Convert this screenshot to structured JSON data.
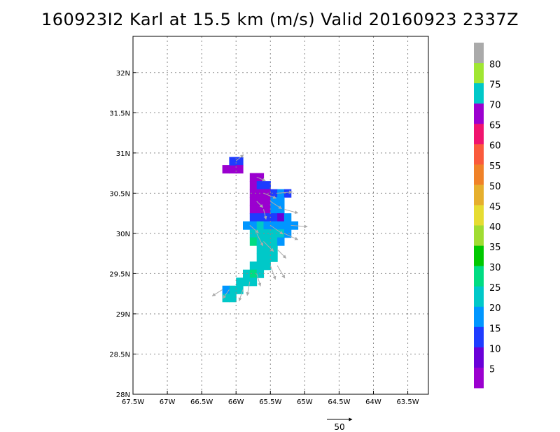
{
  "title": "160923I2 Karl at 15.5 km (m/s) Valid 20160923 2337Z",
  "map": {
    "lon_range": [
      -67.5,
      -63.2
    ],
    "lat_range": [
      28.0,
      32.45
    ],
    "lon_ticks": [
      {
        "v": -67.5,
        "label": "67.5W"
      },
      {
        "v": -67.0,
        "label": "67W"
      },
      {
        "v": -66.5,
        "label": "66.5W"
      },
      {
        "v": -66.0,
        "label": "66W"
      },
      {
        "v": -65.5,
        "label": "65.5W"
      },
      {
        "v": -65.0,
        "label": "65W"
      },
      {
        "v": -64.5,
        "label": "64.5W"
      },
      {
        "v": -64.0,
        "label": "64W"
      },
      {
        "v": -63.5,
        "label": "63.5W"
      }
    ],
    "lat_ticks": [
      {
        "v": 28.0,
        "label": "28N"
      },
      {
        "v": 28.5,
        "label": "28.5N"
      },
      {
        "v": 29.0,
        "label": "29N"
      },
      {
        "v": 29.5,
        "label": "29.5N"
      },
      {
        "v": 30.0,
        "label": "30N"
      },
      {
        "v": 30.5,
        "label": "30.5N"
      },
      {
        "v": 31.0,
        "label": "31N"
      },
      {
        "v": 31.5,
        "label": "31.5N"
      },
      {
        "v": 32.0,
        "label": "32N"
      }
    ],
    "grid": true,
    "cell_deg": [
      0.1,
      0.1
    ]
  },
  "colorbar": {
    "labels": [
      "5",
      "10",
      "15",
      "20",
      "25",
      "30",
      "35",
      "40",
      "45",
      "50",
      "55",
      "60",
      "65",
      "70",
      "75",
      "80"
    ],
    "colors": [
      "#9b00cf",
      "#6a00d8",
      "#1e3cff",
      "#0096ff",
      "#00c8c8",
      "#00dc82",
      "#00c800",
      "#a0dc32",
      "#e6dc32",
      "#e6af2d",
      "#f08228",
      "#fa5a3c",
      "#f0146e",
      "#9b00cf",
      "#00c8c8",
      "#a0e632",
      "#aaaaaa"
    ]
  },
  "wind_cells": [
    {
      "lon": -66.15,
      "lat": 30.8,
      "c": "#9b00cf"
    },
    {
      "lon": -66.05,
      "lat": 30.8,
      "c": "#9b00cf"
    },
    {
      "lon": -66.05,
      "lat": 30.9,
      "c": "#1e3cff"
    },
    {
      "lon": -65.95,
      "lat": 30.9,
      "c": "#1e3cff"
    },
    {
      "lon": -65.95,
      "lat": 30.8,
      "c": "#9b00cf"
    },
    {
      "lon": -65.75,
      "lat": 30.7,
      "c": "#9b00cf"
    },
    {
      "lon": -65.65,
      "lat": 30.7,
      "c": "#9b00cf"
    },
    {
      "lon": -65.75,
      "lat": 30.6,
      "c": "#9b00cf"
    },
    {
      "lon": -65.65,
      "lat": 30.6,
      "c": "#1e3cff"
    },
    {
      "lon": -65.55,
      "lat": 30.6,
      "c": "#1e3cff"
    },
    {
      "lon": -65.75,
      "lat": 30.5,
      "c": "#9b00cf"
    },
    {
      "lon": -65.65,
      "lat": 30.5,
      "c": "#9b00cf"
    },
    {
      "lon": -65.55,
      "lat": 30.5,
      "c": "#9b00cf"
    },
    {
      "lon": -65.45,
      "lat": 30.5,
      "c": "#1e3cff"
    },
    {
      "lon": -65.35,
      "lat": 30.5,
      "c": "#0096ff"
    },
    {
      "lon": -65.25,
      "lat": 30.5,
      "c": "#1e3cff"
    },
    {
      "lon": -65.75,
      "lat": 30.4,
      "c": "#9b00cf"
    },
    {
      "lon": -65.65,
      "lat": 30.4,
      "c": "#9b00cf"
    },
    {
      "lon": -65.55,
      "lat": 30.4,
      "c": "#9b00cf"
    },
    {
      "lon": -65.45,
      "lat": 30.4,
      "c": "#0096ff"
    },
    {
      "lon": -65.35,
      "lat": 30.4,
      "c": "#0096ff"
    },
    {
      "lon": -65.75,
      "lat": 30.3,
      "c": "#9b00cf"
    },
    {
      "lon": -65.65,
      "lat": 30.3,
      "c": "#9b00cf"
    },
    {
      "lon": -65.55,
      "lat": 30.3,
      "c": "#9b00cf"
    },
    {
      "lon": -65.45,
      "lat": 30.3,
      "c": "#0096ff"
    },
    {
      "lon": -65.35,
      "lat": 30.3,
      "c": "#0096ff"
    },
    {
      "lon": -65.75,
      "lat": 30.2,
      "c": "#1e3cff"
    },
    {
      "lon": -65.65,
      "lat": 30.2,
      "c": "#1e3cff"
    },
    {
      "lon": -65.55,
      "lat": 30.2,
      "c": "#1e3cff"
    },
    {
      "lon": -65.45,
      "lat": 30.2,
      "c": "#1e3cff"
    },
    {
      "lon": -65.35,
      "lat": 30.2,
      "c": "#6a00d8"
    },
    {
      "lon": -65.25,
      "lat": 30.2,
      "c": "#0096ff"
    },
    {
      "lon": -65.85,
      "lat": 30.1,
      "c": "#0096ff"
    },
    {
      "lon": -65.75,
      "lat": 30.1,
      "c": "#0096ff"
    },
    {
      "lon": -65.65,
      "lat": 30.1,
      "c": "#00c8c8"
    },
    {
      "lon": -65.55,
      "lat": 30.1,
      "c": "#0096ff"
    },
    {
      "lon": -65.45,
      "lat": 30.1,
      "c": "#0096ff"
    },
    {
      "lon": -65.35,
      "lat": 30.1,
      "c": "#0096ff"
    },
    {
      "lon": -65.25,
      "lat": 30.1,
      "c": "#0096ff"
    },
    {
      "lon": -65.15,
      "lat": 30.1,
      "c": "#0096ff"
    },
    {
      "lon": -65.75,
      "lat": 30.0,
      "c": "#00c8c8"
    },
    {
      "lon": -65.65,
      "lat": 30.0,
      "c": "#00c8c8"
    },
    {
      "lon": -65.55,
      "lat": 30.0,
      "c": "#00c8c8"
    },
    {
      "lon": -65.45,
      "lat": 30.0,
      "c": "#00c8c8"
    },
    {
      "lon": -65.35,
      "lat": 30.0,
      "c": "#00c8c8"
    },
    {
      "lon": -65.25,
      "lat": 30.0,
      "c": "#0096ff"
    },
    {
      "lon": -65.75,
      "lat": 29.9,
      "c": "#00dc82"
    },
    {
      "lon": -65.65,
      "lat": 29.9,
      "c": "#00c8c8"
    },
    {
      "lon": -65.55,
      "lat": 29.9,
      "c": "#00c8c8"
    },
    {
      "lon": -65.45,
      "lat": 29.9,
      "c": "#00c8c8"
    },
    {
      "lon": -65.35,
      "lat": 29.9,
      "c": "#0096ff"
    },
    {
      "lon": -65.65,
      "lat": 29.8,
      "c": "#00c8c8"
    },
    {
      "lon": -65.55,
      "lat": 29.8,
      "c": "#00c8c8"
    },
    {
      "lon": -65.45,
      "lat": 29.8,
      "c": "#00c8c8"
    },
    {
      "lon": -65.65,
      "lat": 29.7,
      "c": "#00c8c8"
    },
    {
      "lon": -65.55,
      "lat": 29.7,
      "c": "#00c8c8"
    },
    {
      "lon": -65.45,
      "lat": 29.7,
      "c": "#00c8c8"
    },
    {
      "lon": -65.75,
      "lat": 29.6,
      "c": "#00c8c8"
    },
    {
      "lon": -65.65,
      "lat": 29.6,
      "c": "#00c8c8"
    },
    {
      "lon": -65.55,
      "lat": 29.6,
      "c": "#00c8c8"
    },
    {
      "lon": -65.85,
      "lat": 29.5,
      "c": "#00c8c8"
    },
    {
      "lon": -65.75,
      "lat": 29.5,
      "c": "#00dc82"
    },
    {
      "lon": -65.65,
      "lat": 29.5,
      "c": "#00c8c8"
    },
    {
      "lon": -65.95,
      "lat": 29.4,
      "c": "#00c8c8"
    },
    {
      "lon": -65.85,
      "lat": 29.4,
      "c": "#00c8c8"
    },
    {
      "lon": -65.75,
      "lat": 29.4,
      "c": "#00c8c8"
    },
    {
      "lon": -66.05,
      "lat": 29.3,
      "c": "#00c8c8"
    },
    {
      "lon": -65.95,
      "lat": 29.3,
      "c": "#00c8c8"
    },
    {
      "lon": -66.15,
      "lat": 29.3,
      "c": "#0096ff"
    },
    {
      "lon": -66.15,
      "lat": 29.2,
      "c": "#00c8c8"
    },
    {
      "lon": -66.05,
      "lat": 29.2,
      "c": "#00c8c8"
    }
  ],
  "wind_vectors": [
    {
      "lon": -66.0,
      "lat": 30.9,
      "u": 12,
      "v": 10
    },
    {
      "lon": -65.7,
      "lat": 30.7,
      "u": 14,
      "v": -6
    },
    {
      "lon": -65.6,
      "lat": 30.5,
      "u": 20,
      "v": -8
    },
    {
      "lon": -65.5,
      "lat": 30.4,
      "u": 18,
      "v": -12
    },
    {
      "lon": -65.4,
      "lat": 30.5,
      "u": 24,
      "v": 2
    },
    {
      "lon": -65.3,
      "lat": 30.3,
      "u": 22,
      "v": -6
    },
    {
      "lon": -65.2,
      "lat": 30.1,
      "u": 26,
      "v": -2
    },
    {
      "lon": -65.3,
      "lat": 30.0,
      "u": 22,
      "v": -10
    },
    {
      "lon": -65.5,
      "lat": 30.1,
      "u": 20,
      "v": -14
    },
    {
      "lon": -65.7,
      "lat": 30.0,
      "u": 10,
      "v": -20
    },
    {
      "lon": -65.6,
      "lat": 29.9,
      "u": 16,
      "v": -16
    },
    {
      "lon": -65.4,
      "lat": 29.8,
      "u": 14,
      "v": -14
    },
    {
      "lon": -65.5,
      "lat": 29.6,
      "u": 8,
      "v": -22
    },
    {
      "lon": -65.4,
      "lat": 29.6,
      "u": 12,
      "v": -20
    },
    {
      "lon": -65.7,
      "lat": 29.5,
      "u": 6,
      "v": -20
    },
    {
      "lon": -65.8,
      "lat": 29.4,
      "u": -4,
      "v": -22
    },
    {
      "lon": -65.9,
      "lat": 29.3,
      "u": -6,
      "v": -18
    },
    {
      "lon": -66.1,
      "lat": 29.3,
      "u": -10,
      "v": -14
    },
    {
      "lon": -66.2,
      "lat": 29.3,
      "u": -16,
      "v": -10
    },
    {
      "lon": -65.6,
      "lat": 30.3,
      "u": 4,
      "v": -16
    },
    {
      "lon": -65.7,
      "lat": 30.4,
      "u": 10,
      "v": -10
    },
    {
      "lon": -65.8,
      "lat": 30.1,
      "u": 14,
      "v": -12
    }
  ],
  "reference_vector": {
    "length_label": "50"
  }
}
